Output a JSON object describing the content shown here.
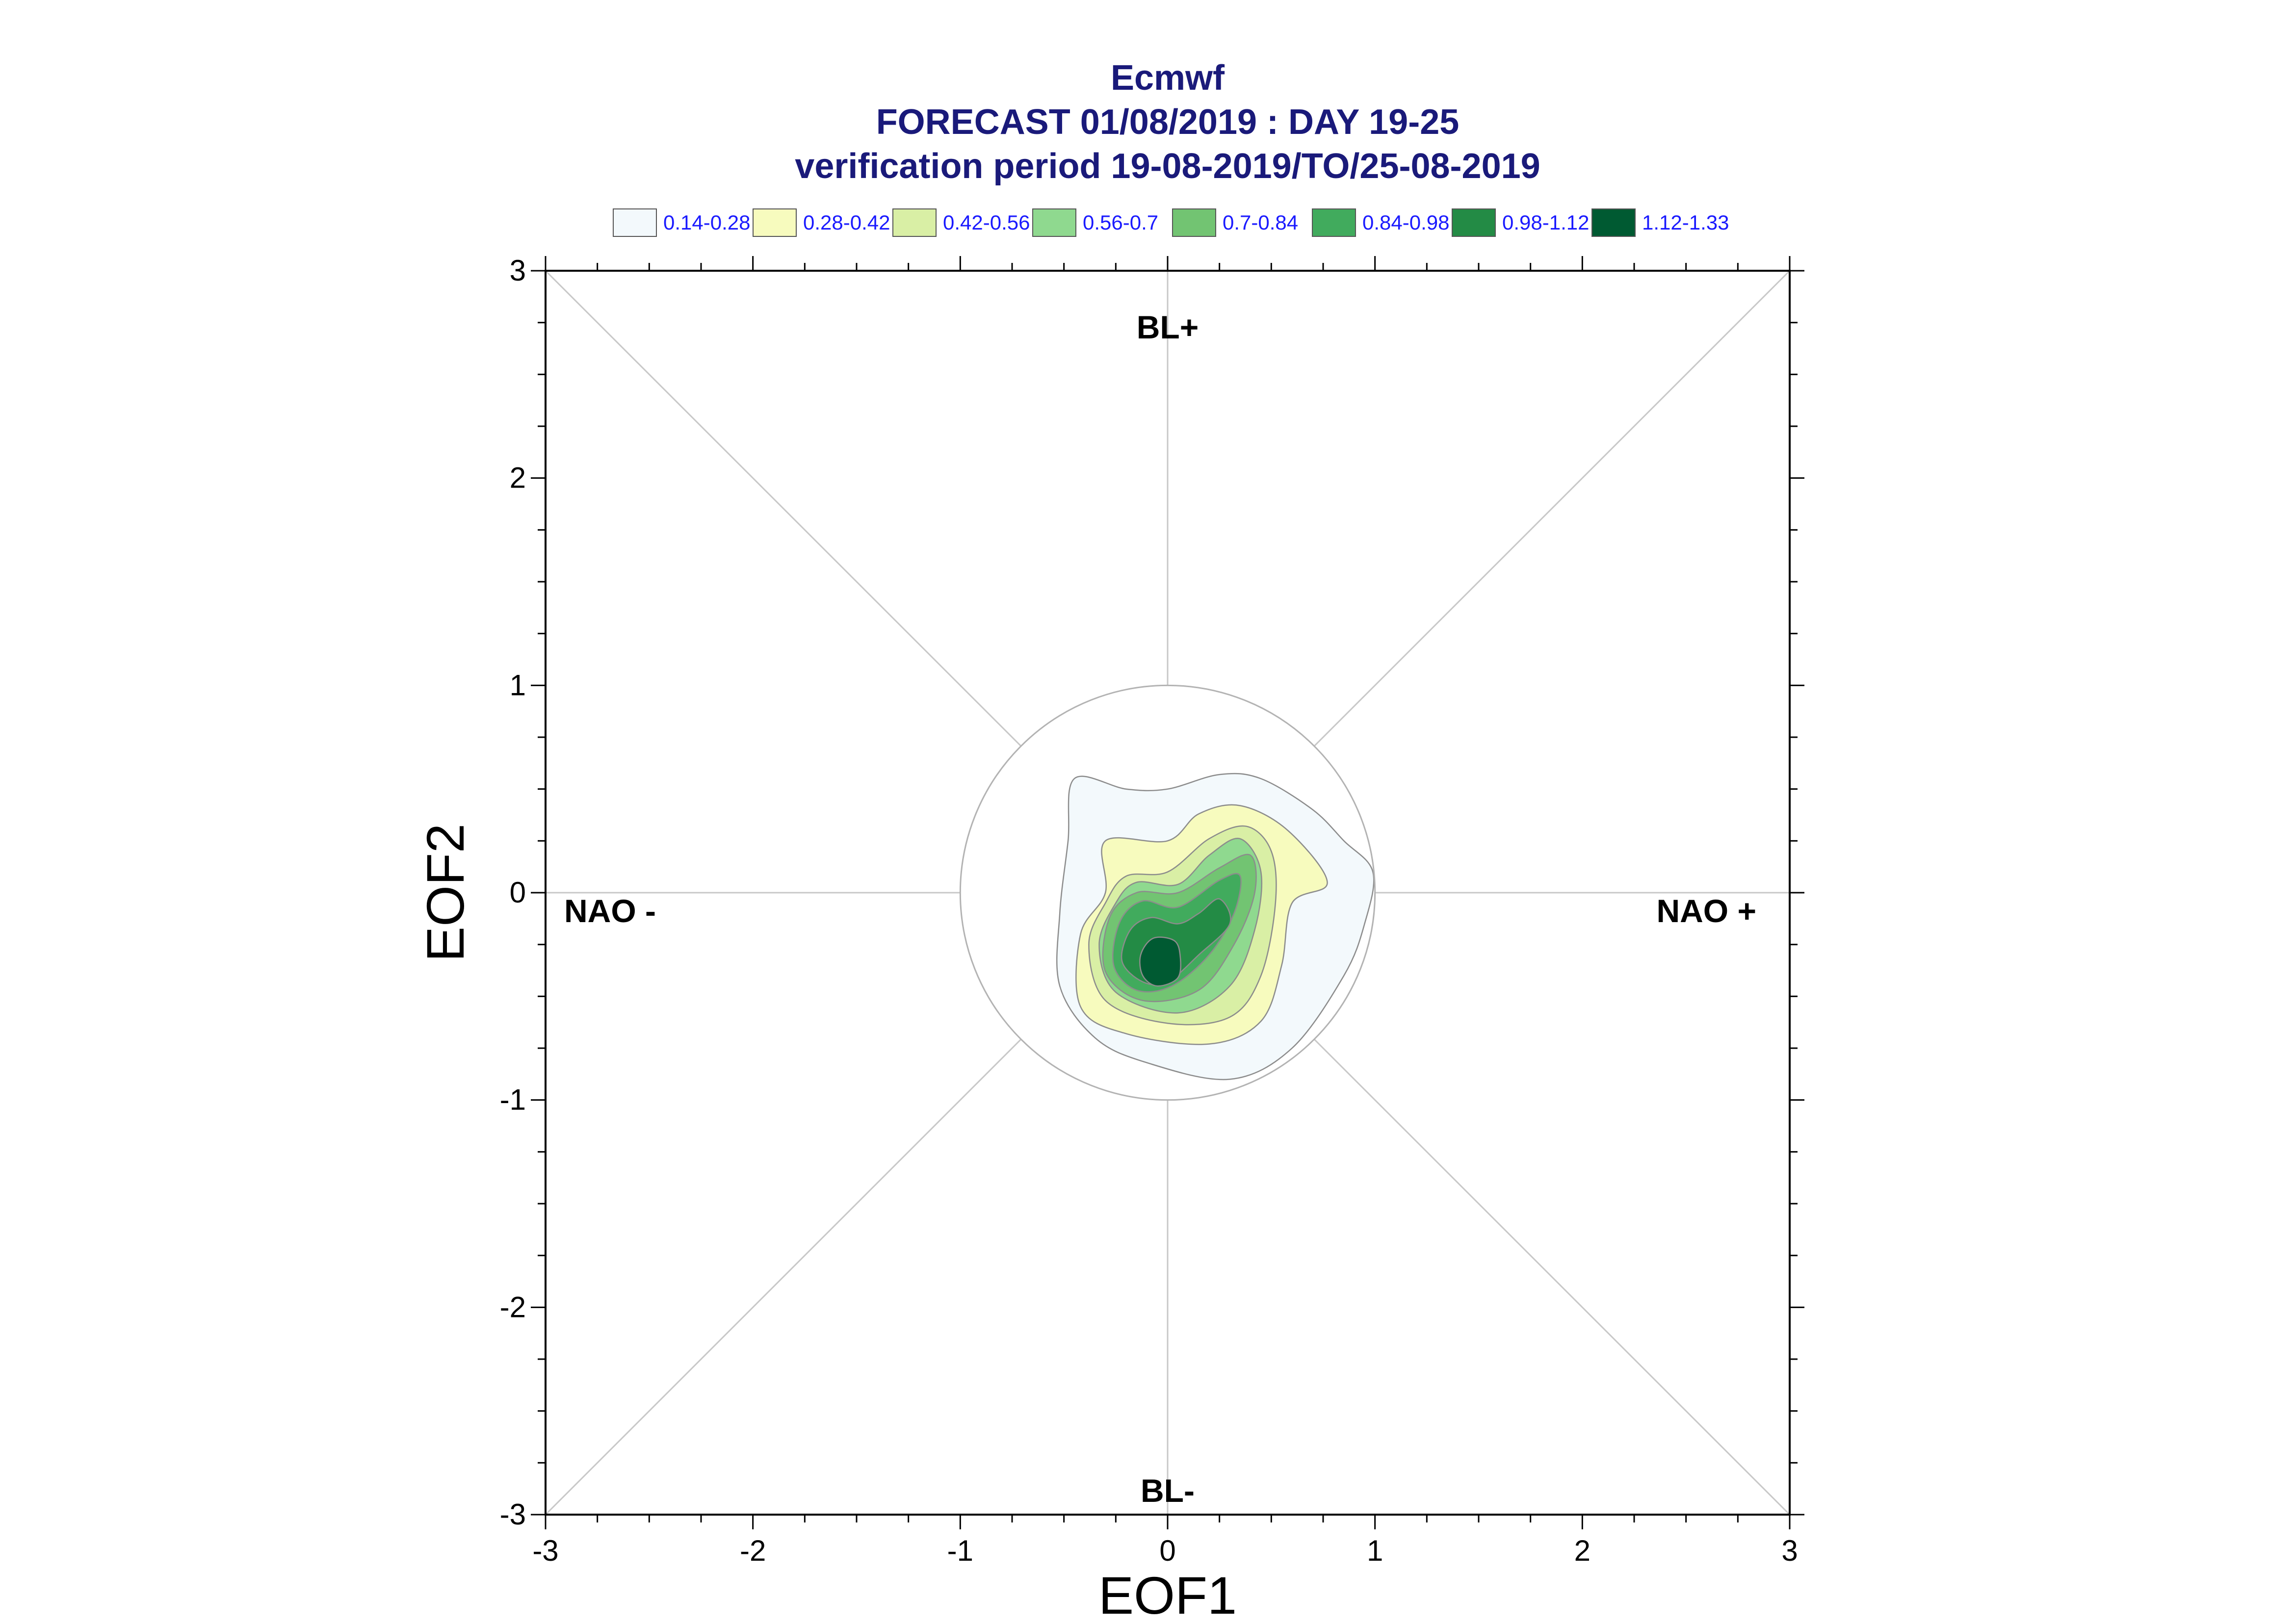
{
  "chart_data": {
    "type": "contour",
    "title": [
      "Ecmwf",
      "FORECAST 01/08/2019 : DAY 19-25",
      "verification period 19-08-2019/TO/25-08-2019"
    ],
    "xlabel": "EOF1",
    "ylabel": "EOF2",
    "xlim": [
      -3,
      3
    ],
    "ylim": [
      -3,
      3
    ],
    "xticks": [
      "-3",
      "-2",
      "-1",
      "0",
      "1",
      "2",
      "3"
    ],
    "yticks": [
      "-3",
      "-2",
      "-1",
      "0",
      "1",
      "2",
      "3"
    ],
    "regime_labels": {
      "top": "BL+",
      "bottom": "BL-",
      "left": "NAO -",
      "right": "NAO +"
    },
    "reference_circle_radius": 1.0,
    "legend": {
      "placement": "top",
      "levels": [
        {
          "label": "0.14-0.28",
          "color": "#f3f9fc"
        },
        {
          "label": "0.28-0.42",
          "color": "#f7fbbe"
        },
        {
          "label": "0.42-0.56",
          "color": "#d9efa5"
        },
        {
          "label": "0.56-0.7",
          "color": "#8fd98f"
        },
        {
          "label": "0.7-0.84",
          "color": "#72c472"
        },
        {
          "label": "0.84-0.98",
          "color": "#41ab5d"
        },
        {
          "label": "0.98-1.12",
          "color": "#238b45"
        },
        {
          "label": "1.12-1.33",
          "color": "#005a32"
        }
      ]
    },
    "density_peak": {
      "x": -0.03,
      "y": -0.35
    },
    "contours": [
      [
        [
          -0.45,
          0.55
        ],
        [
          -0.2,
          0.5
        ],
        [
          0.0,
          0.5
        ],
        [
          0.25,
          0.57
        ],
        [
          0.45,
          0.55
        ],
        [
          0.7,
          0.4
        ],
        [
          0.85,
          0.25
        ],
        [
          0.99,
          0.1
        ],
        [
          0.95,
          -0.15
        ],
        [
          0.85,
          -0.4
        ],
        [
          0.6,
          -0.75
        ],
        [
          0.3,
          -0.9
        ],
        [
          -0.1,
          -0.82
        ],
        [
          -0.35,
          -0.7
        ],
        [
          -0.52,
          -0.45
        ],
        [
          -0.52,
          -0.1
        ],
        [
          -0.48,
          0.25
        ]
      ],
      [
        [
          -0.3,
          0.25
        ],
        [
          0.0,
          0.25
        ],
        [
          0.15,
          0.38
        ],
        [
          0.35,
          0.42
        ],
        [
          0.58,
          0.3
        ],
        [
          0.77,
          0.05
        ],
        [
          0.6,
          -0.05
        ],
        [
          0.55,
          -0.35
        ],
        [
          0.45,
          -0.62
        ],
        [
          0.2,
          -0.73
        ],
        [
          -0.2,
          -0.68
        ],
        [
          -0.42,
          -0.55
        ],
        [
          -0.42,
          -0.2
        ],
        [
          -0.3,
          0.0
        ]
      ],
      [
        [
          -0.2,
          0.08
        ],
        [
          0.0,
          0.1
        ],
        [
          0.2,
          0.26
        ],
        [
          0.38,
          0.32
        ],
        [
          0.5,
          0.2
        ],
        [
          0.52,
          -0.05
        ],
        [
          0.45,
          -0.4
        ],
        [
          0.3,
          -0.6
        ],
        [
          0.0,
          -0.63
        ],
        [
          -0.3,
          -0.52
        ],
        [
          -0.38,
          -0.25
        ],
        [
          -0.3,
          -0.05
        ]
      ],
      [
        [
          -0.15,
          0.05
        ],
        [
          0.05,
          0.04
        ],
        [
          0.2,
          0.18
        ],
        [
          0.35,
          0.26
        ],
        [
          0.45,
          0.1
        ],
        [
          0.42,
          -0.18
        ],
        [
          0.3,
          -0.45
        ],
        [
          0.05,
          -0.58
        ],
        [
          -0.25,
          -0.48
        ],
        [
          -0.33,
          -0.25
        ],
        [
          -0.25,
          -0.05
        ]
      ],
      [
        [
          -0.15,
          0.0
        ],
        [
          0.05,
          0.0
        ],
        [
          0.25,
          0.12
        ],
        [
          0.4,
          0.18
        ],
        [
          0.42,
          0.0
        ],
        [
          0.32,
          -0.25
        ],
        [
          0.15,
          -0.47
        ],
        [
          -0.12,
          -0.52
        ],
        [
          -0.3,
          -0.38
        ],
        [
          -0.28,
          -0.12
        ]
      ],
      [
        [
          -0.12,
          -0.04
        ],
        [
          0.05,
          -0.07
        ],
        [
          0.25,
          0.06
        ],
        [
          0.35,
          0.08
        ],
        [
          0.32,
          -0.1
        ],
        [
          0.2,
          -0.3
        ],
        [
          0.02,
          -0.45
        ],
        [
          -0.15,
          -0.47
        ],
        [
          -0.26,
          -0.35
        ],
        [
          -0.23,
          -0.14
        ]
      ],
      [
        [
          -0.08,
          -0.12
        ],
        [
          0.05,
          -0.15
        ],
        [
          0.15,
          -0.1
        ],
        [
          0.25,
          -0.03
        ],
        [
          0.3,
          -0.15
        ],
        [
          0.15,
          -0.3
        ],
        [
          0.0,
          -0.43
        ],
        [
          -0.12,
          -0.43
        ],
        [
          -0.22,
          -0.33
        ],
        [
          -0.18,
          -0.18
        ]
      ],
      [
        [
          -0.07,
          -0.22
        ],
        [
          0.03,
          -0.23
        ],
        [
          0.06,
          -0.3
        ],
        [
          0.05,
          -0.41
        ],
        [
          -0.05,
          -0.45
        ],
        [
          -0.12,
          -0.4
        ],
        [
          -0.13,
          -0.3
        ]
      ]
    ]
  }
}
